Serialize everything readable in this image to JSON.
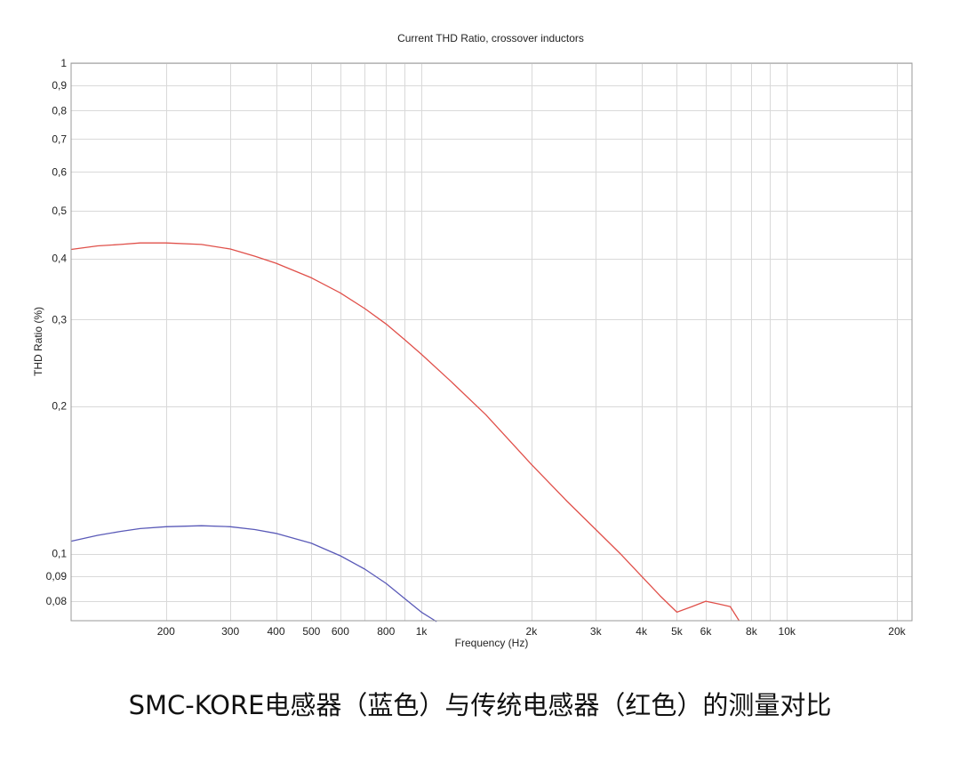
{
  "caption": "SMC-KORE电感器（蓝色）与传统电感器（红色）的测量对比",
  "chart_data": {
    "type": "line",
    "title": "Current THD Ratio, crossover inductors",
    "xlabel": "Frequency (Hz)",
    "ylabel": "THD Ratio (%)",
    "x_scale": "log",
    "y_scale": "log",
    "xlim": [
      110,
      22000
    ],
    "ylim": [
      0.073,
      1.0
    ],
    "grid": true,
    "x_ticks": [
      {
        "value": 200,
        "label": "200"
      },
      {
        "value": 300,
        "label": "300"
      },
      {
        "value": 400,
        "label": "400"
      },
      {
        "value": 500,
        "label": "500"
      },
      {
        "value": 600,
        "label": "600"
      },
      {
        "value": 800,
        "label": "800"
      },
      {
        "value": 1000,
        "label": "1k"
      },
      {
        "value": 2000,
        "label": "2k"
      },
      {
        "value": 3000,
        "label": "3k"
      },
      {
        "value": 4000,
        "label": "4k"
      },
      {
        "value": 5000,
        "label": "5k"
      },
      {
        "value": 6000,
        "label": "6k"
      },
      {
        "value": 8000,
        "label": "8k"
      },
      {
        "value": 10000,
        "label": "10k"
      },
      {
        "value": 20000,
        "label": "20k"
      }
    ],
    "x_minor_grid": [
      700,
      900,
      7000,
      9000
    ],
    "y_ticks": [
      {
        "value": 0.08,
        "label": "0,08"
      },
      {
        "value": 0.09,
        "label": "0,09"
      },
      {
        "value": 0.1,
        "label": "0,1"
      },
      {
        "value": 0.2,
        "label": "0,2"
      },
      {
        "value": 0.3,
        "label": "0,3"
      },
      {
        "value": 0.4,
        "label": "0,4"
      },
      {
        "value": 0.5,
        "label": "0,5"
      },
      {
        "value": 0.6,
        "label": "0,6"
      },
      {
        "value": 0.7,
        "label": "0,7"
      },
      {
        "value": 0.8,
        "label": "0,8"
      },
      {
        "value": 0.9,
        "label": "0,9"
      },
      {
        "value": 1.0,
        "label": "1"
      }
    ],
    "series": [
      {
        "color": "#e0504a",
        "points": [
          [
            110,
            0.417
          ],
          [
            130,
            0.424
          ],
          [
            150,
            0.427
          ],
          [
            170,
            0.43
          ],
          [
            200,
            0.43
          ],
          [
            250,
            0.427
          ],
          [
            300,
            0.418
          ],
          [
            350,
            0.404
          ],
          [
            400,
            0.391
          ],
          [
            500,
            0.365
          ],
          [
            600,
            0.34
          ],
          [
            700,
            0.316
          ],
          [
            800,
            0.294
          ],
          [
            900,
            0.273
          ],
          [
            1000,
            0.255
          ],
          [
            1200,
            0.225
          ],
          [
            1500,
            0.192
          ],
          [
            2000,
            0.152
          ],
          [
            2500,
            0.128
          ],
          [
            3000,
            0.112
          ],
          [
            3500,
            0.1
          ],
          [
            4000,
            0.09
          ],
          [
            4500,
            0.082
          ],
          [
            5000,
            0.076
          ],
          [
            5500,
            0.078
          ],
          [
            6000,
            0.08
          ],
          [
            6500,
            0.079
          ],
          [
            7000,
            0.078
          ],
          [
            7400,
            0.073
          ]
        ]
      },
      {
        "color": "#5a5ab8",
        "points": [
          [
            110,
            0.106
          ],
          [
            130,
            0.109
          ],
          [
            150,
            0.111
          ],
          [
            170,
            0.1125
          ],
          [
            200,
            0.1135
          ],
          [
            250,
            0.114
          ],
          [
            300,
            0.1135
          ],
          [
            350,
            0.112
          ],
          [
            400,
            0.11
          ],
          [
            500,
            0.105
          ],
          [
            600,
            0.099
          ],
          [
            700,
            0.093
          ],
          [
            800,
            0.087
          ],
          [
            900,
            0.081
          ],
          [
            1000,
            0.076
          ],
          [
            1100,
            0.0727
          ]
        ]
      }
    ]
  }
}
